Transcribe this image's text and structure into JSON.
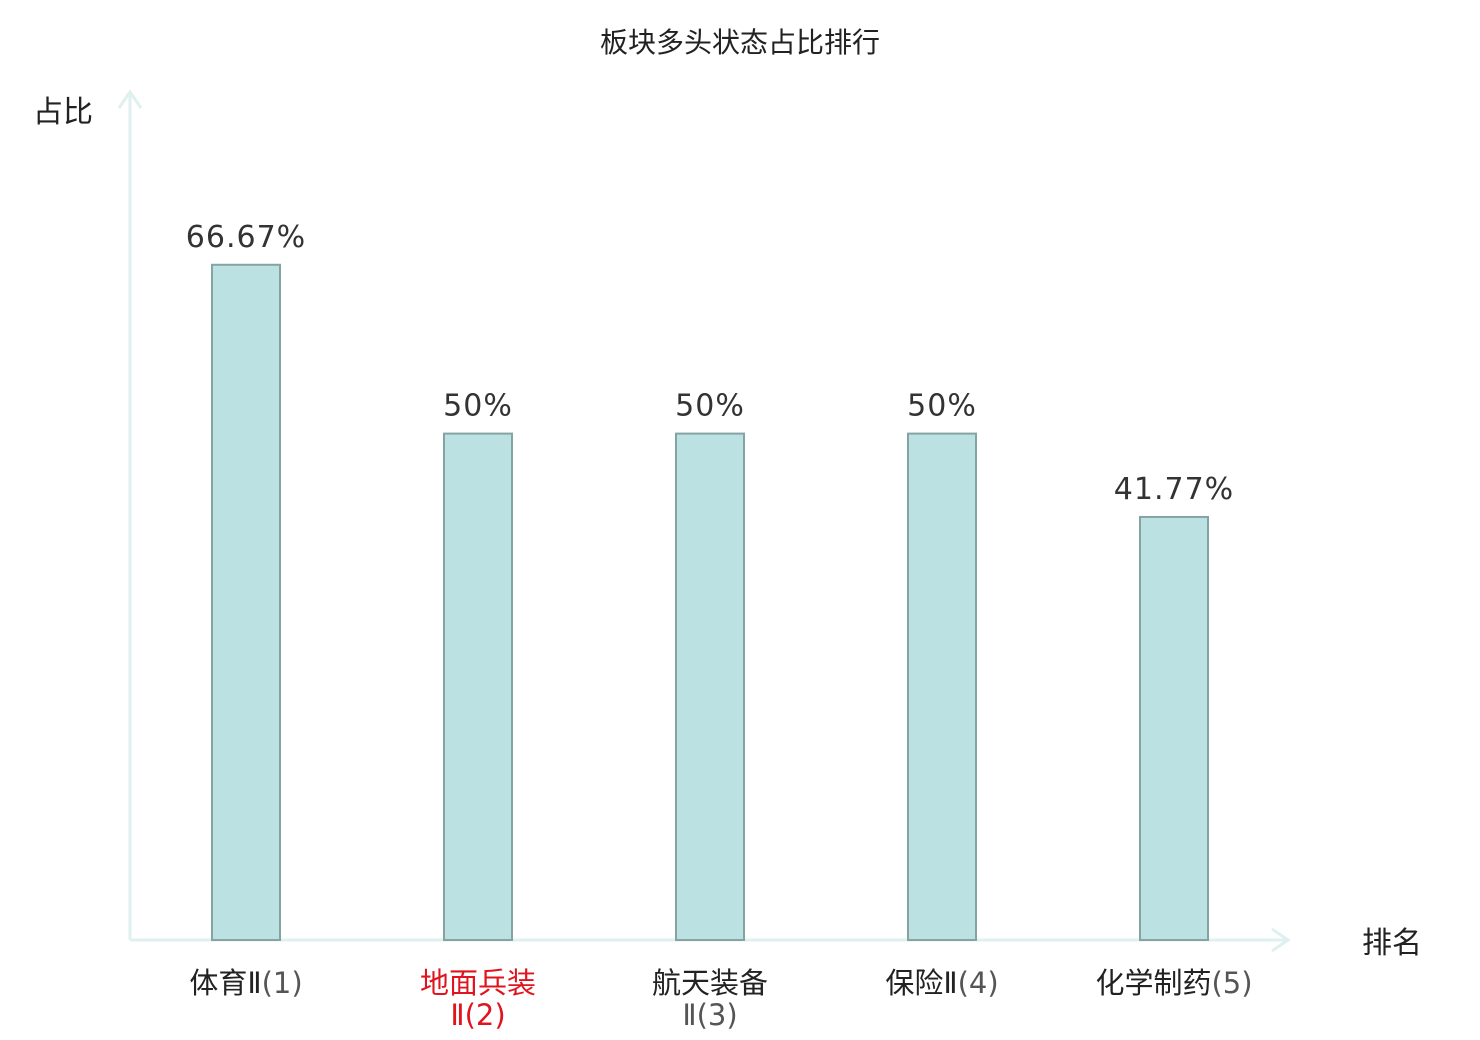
{
  "chart_data": {
    "type": "bar",
    "title": "板块多头状态占比排行",
    "xlabel": "排名",
    "ylabel": "占比",
    "ylim": [
      0,
      100
    ],
    "grid": false,
    "categories": [
      {
        "name": "体育Ⅱ",
        "rank": "(1)",
        "highlight": false,
        "wrap": false
      },
      {
        "name": "地面兵装",
        "rank": "Ⅱ(2)",
        "highlight": true,
        "wrap": true
      },
      {
        "name": "航天装备",
        "rank": "Ⅱ(3)",
        "highlight": false,
        "wrap": true
      },
      {
        "name": "保险Ⅱ",
        "rank": "(4)",
        "highlight": false,
        "wrap": false
      },
      {
        "name": "化学制药",
        "rank": "(5)",
        "highlight": false,
        "wrap": false
      }
    ],
    "values": [
      66.67,
      50,
      50,
      50,
      41.77
    ],
    "value_labels": [
      "66.67%",
      "50%",
      "50%",
      "50%",
      "41.77%"
    ],
    "colors": {
      "bar_fill": "#bce1e2",
      "bar_stroke": "#86a3a4",
      "axis": "#dff1ef",
      "highlight_text": "#e0141e"
    }
  }
}
